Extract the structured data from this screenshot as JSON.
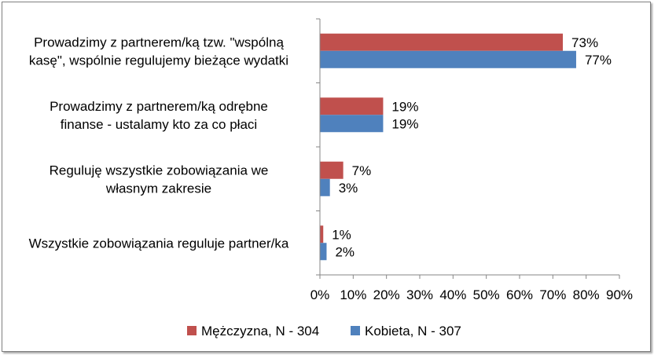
{
  "chart_data": {
    "type": "bar",
    "orientation": "horizontal",
    "categories": [
      [
        "Prowadzimy z partnerem/ką tzw. \"wspólną",
        "kasę\", wspólnie regulujemy bieżące wydatki"
      ],
      [
        "Prowadzimy z partnerem/ką odrębne",
        "finanse - ustalamy kto za co płaci"
      ],
      [
        "Reguluję wszystkie zobowiązania we",
        "własnym zakresie"
      ],
      [
        "Wszystkie zobowiązania reguluje partner/ka"
      ]
    ],
    "series": [
      {
        "name": "Mężczyzna, N - 304",
        "color": "#c0504d",
        "values": [
          73,
          19,
          7,
          1
        ],
        "labels": [
          "73%",
          "19%",
          "7%",
          "1%"
        ]
      },
      {
        "name": "Kobieta, N - 307",
        "color": "#4f81bd",
        "values": [
          77,
          19,
          3,
          2
        ],
        "labels": [
          "77%",
          "19%",
          "3%",
          "2%"
        ]
      }
    ],
    "xlim": [
      0,
      90
    ],
    "xticks": [
      "0%",
      "10%",
      "20%",
      "30%",
      "40%",
      "50%",
      "60%",
      "70%",
      "80%",
      "90%"
    ],
    "grid": false,
    "legend": "bottom"
  }
}
